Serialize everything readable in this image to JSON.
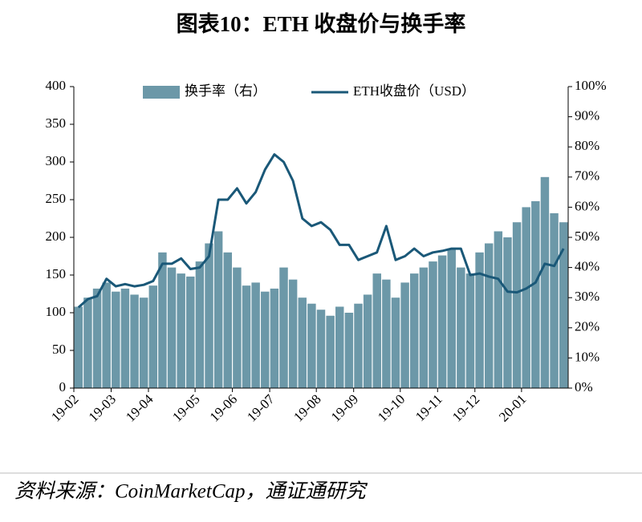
{
  "chart_data": {
    "type": "bar+line",
    "title": "图表10：ETH 收盘价与换手率",
    "source": "资料来源：CoinMarketCap，通证通研究",
    "categories": [
      "19-02",
      null,
      null,
      null,
      "19-03",
      null,
      null,
      null,
      "19-04",
      null,
      null,
      null,
      null,
      "19-05",
      null,
      null,
      null,
      "19-06",
      null,
      null,
      null,
      "19-07",
      null,
      null,
      null,
      null,
      "19-08",
      null,
      null,
      null,
      "19-09",
      null,
      null,
      null,
      null,
      "19-10",
      null,
      null,
      null,
      "19-11",
      null,
      null,
      null,
      "19-12",
      null,
      null,
      null,
      null,
      "20-01",
      null,
      null,
      null,
      null
    ],
    "series": [
      {
        "name": "换手率（右）",
        "type": "bar",
        "axis": "y2",
        "color": "#6c98a8",
        "values": [
          27,
          30,
          33,
          35,
          32,
          33,
          31,
          30,
          34,
          45,
          40,
          38,
          37,
          42,
          48,
          52,
          45,
          40,
          34,
          35,
          32,
          33,
          40,
          36,
          30,
          28,
          26,
          24,
          27,
          25,
          28,
          31,
          38,
          36,
          30,
          35,
          38,
          40,
          42,
          44,
          46,
          40,
          38,
          45,
          48,
          52,
          50,
          55,
          60,
          62,
          70,
          58,
          55
        ]
      },
      {
        "name": "ETH收盘价（USD）",
        "type": "line",
        "axis": "y",
        "color": "#1a5878",
        "values": [
          107,
          118,
          122,
          145,
          135,
          138,
          135,
          137,
          142,
          165,
          165,
          172,
          158,
          160,
          175,
          250,
          250,
          265,
          245,
          260,
          290,
          310,
          300,
          275,
          225,
          215,
          220,
          210,
          190,
          190,
          170,
          175,
          180,
          215,
          170,
          175,
          185,
          175,
          180,
          182,
          185,
          185,
          150,
          152,
          148,
          145,
          128,
          127,
          132,
          140,
          165,
          162,
          185
        ]
      }
    ],
    "ylim": [
      0,
      400
    ],
    "yticks": [
      0,
      50,
      100,
      150,
      200,
      250,
      300,
      350,
      400
    ],
    "y2lim": [
      0,
      100
    ],
    "y2ticks": [
      {
        "value": 0,
        "label": "0%"
      },
      {
        "value": 10,
        "label": "10%"
      },
      {
        "value": 20,
        "label": "20%"
      },
      {
        "value": 30,
        "label": "30%"
      },
      {
        "value": 40,
        "label": "40%"
      },
      {
        "value": 50,
        "label": "50%"
      },
      {
        "value": 60,
        "label": "60%"
      },
      {
        "value": 70,
        "label": "70%"
      },
      {
        "value": 80,
        "label": "80%"
      },
      {
        "value": 90,
        "label": "90%"
      },
      {
        "value": 100,
        "label": "100%"
      }
    ],
    "legend": "top"
  }
}
